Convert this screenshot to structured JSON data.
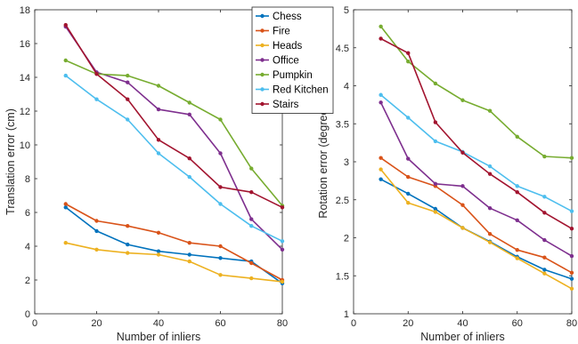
{
  "chart_data": [
    {
      "type": "line",
      "xlabel": "Number of inliers",
      "ylabel": "Translation error (cm)",
      "xlim": [
        0,
        80
      ],
      "ylim": [
        0,
        18
      ],
      "xticks": [
        0,
        20,
        40,
        60,
        80
      ],
      "yticks": [
        0,
        2,
        4,
        6,
        8,
        10,
        12,
        14,
        16,
        18
      ],
      "grid": false,
      "legend_position": "top-right",
      "x": [
        10,
        20,
        30,
        40,
        50,
        60,
        70,
        80
      ],
      "series": [
        {
          "name": "Chess",
          "color": "#0072BD",
          "values": [
            6.3,
            4.9,
            4.1,
            3.7,
            3.5,
            3.3,
            3.1,
            1.8
          ]
        },
        {
          "name": "Fire",
          "color": "#D95319",
          "values": [
            6.5,
            5.5,
            5.2,
            4.8,
            4.2,
            4.0,
            3.0,
            2.0
          ]
        },
        {
          "name": "Heads",
          "color": "#EDB120",
          "values": [
            4.2,
            3.8,
            3.6,
            3.5,
            3.1,
            2.3,
            2.1,
            1.9
          ]
        },
        {
          "name": "Office",
          "color": "#7E2F8E",
          "values": [
            17.0,
            14.3,
            13.7,
            12.1,
            11.8,
            9.5,
            5.6,
            3.8
          ]
        },
        {
          "name": "Pumpkin",
          "color": "#77AC30",
          "values": [
            15.0,
            14.2,
            14.1,
            13.5,
            12.5,
            11.5,
            8.6,
            6.4
          ]
        },
        {
          "name": "Red Kitchen",
          "color": "#4DBEEE",
          "values": [
            14.1,
            12.7,
            11.5,
            9.5,
            8.1,
            6.5,
            5.2,
            4.3
          ]
        },
        {
          "name": "Stairs",
          "color": "#A2142F",
          "values": [
            17.1,
            14.2,
            12.7,
            10.3,
            9.2,
            7.5,
            7.2,
            6.3
          ]
        }
      ]
    },
    {
      "type": "line",
      "xlabel": "Number of inliers",
      "ylabel": "Rotation error (degree)",
      "xlim": [
        0,
        80
      ],
      "ylim": [
        1,
        5
      ],
      "xticks": [
        0,
        20,
        40,
        60,
        80
      ],
      "yticks": [
        1,
        1.5,
        2,
        2.5,
        3,
        3.5,
        4,
        4.5,
        5
      ],
      "grid": false,
      "x": [
        10,
        20,
        30,
        40,
        50,
        60,
        70,
        80
      ],
      "series": [
        {
          "name": "Chess",
          "color": "#0072BD",
          "values": [
            2.77,
            2.58,
            2.38,
            2.13,
            1.95,
            1.75,
            1.58,
            1.46
          ]
        },
        {
          "name": "Fire",
          "color": "#D95319",
          "values": [
            3.05,
            2.8,
            2.68,
            2.43,
            2.05,
            1.84,
            1.74,
            1.54
          ]
        },
        {
          "name": "Heads",
          "color": "#EDB120",
          "values": [
            2.9,
            2.46,
            2.34,
            2.13,
            1.94,
            1.73,
            1.53,
            1.33
          ]
        },
        {
          "name": "Office",
          "color": "#7E2F8E",
          "values": [
            3.78,
            3.04,
            2.71,
            2.68,
            2.39,
            2.23,
            1.97,
            1.76
          ]
        },
        {
          "name": "Pumpkin",
          "color": "#77AC30",
          "values": [
            4.78,
            4.32,
            4.03,
            3.81,
            3.67,
            3.33,
            3.07,
            3.05
          ]
        },
        {
          "name": "Red Kitchen",
          "color": "#4DBEEE",
          "values": [
            3.88,
            3.58,
            3.27,
            3.13,
            2.94,
            2.68,
            2.54,
            2.35
          ]
        },
        {
          "name": "Stairs",
          "color": "#A2142F",
          "values": [
            4.62,
            4.43,
            3.52,
            3.12,
            2.84,
            2.6,
            2.33,
            2.12
          ]
        }
      ]
    }
  ]
}
